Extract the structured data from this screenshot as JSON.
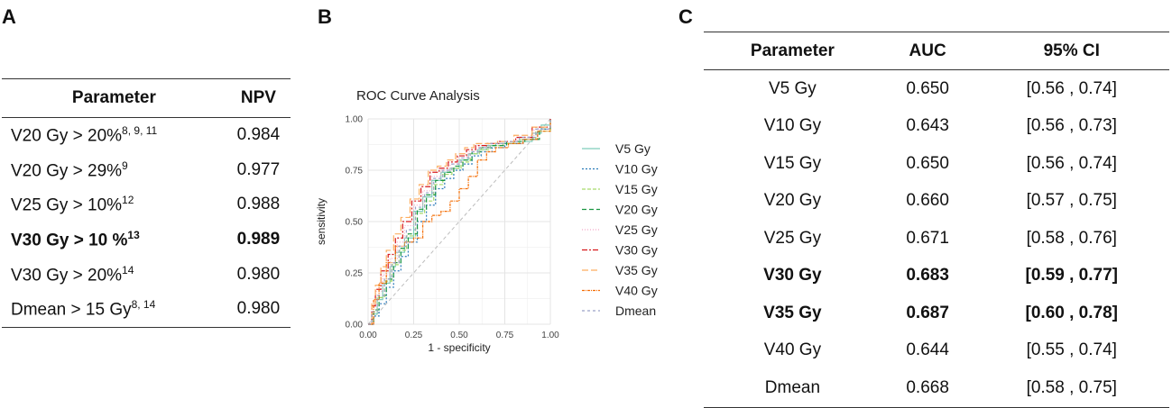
{
  "panels": {
    "a": "A",
    "b": "B",
    "c": "C"
  },
  "table_a": {
    "headers": [
      "Parameter",
      "NPV"
    ],
    "rows": [
      {
        "param": "V20 Gy > 20%",
        "sup": "8, 9, 11",
        "npv": "0.984",
        "bold": false
      },
      {
        "param": "V20 Gy > 29%",
        "sup": "9",
        "npv": "0.977",
        "bold": false
      },
      {
        "param": "V25 Gy > 10%",
        "sup": "12",
        "npv": "0.988",
        "bold": false
      },
      {
        "param": "V30 Gy > 10 %",
        "sup": "13",
        "npv": "0.989",
        "bold": true
      },
      {
        "param": "V30 Gy > 20%",
        "sup": "14",
        "npv": "0.980",
        "bold": false
      },
      {
        "param": "Dmean > 15 Gy",
        "sup": "8, 14",
        "npv": "0.980",
        "bold": false
      }
    ]
  },
  "chart_data": {
    "type": "line",
    "title": "ROC Curve Analysis",
    "xlabel": "1 - specificity",
    "ylabel": "sensitivity",
    "xlim": [
      0,
      1
    ],
    "ylim": [
      0,
      1
    ],
    "x_ticks": [
      "0.00",
      "0.25",
      "0.50",
      "0.75",
      "1.00"
    ],
    "y_ticks": [
      "0.00",
      "0.25",
      "0.50",
      "0.75",
      "1.00"
    ],
    "reference_line": [
      [
        0,
        0
      ],
      [
        1,
        1
      ]
    ],
    "series": [
      {
        "name": "V5 Gy",
        "color": "#7fcdbb",
        "dash": "0",
        "x": [
          0,
          0.02,
          0.05,
          0.08,
          0.12,
          0.15,
          0.2,
          0.25,
          0.3,
          0.35,
          0.4,
          0.45,
          0.5,
          0.55,
          0.6,
          0.65,
          0.7,
          0.8,
          0.9,
          0.95,
          1
        ],
        "y": [
          0,
          0.05,
          0.12,
          0.2,
          0.28,
          0.35,
          0.42,
          0.55,
          0.62,
          0.7,
          0.74,
          0.76,
          0.8,
          0.83,
          0.85,
          0.87,
          0.88,
          0.89,
          0.93,
          0.97,
          1
        ]
      },
      {
        "name": "V10 Gy",
        "color": "#2b7bb9",
        "dash": "2 2",
        "x": [
          0,
          0.03,
          0.06,
          0.1,
          0.14,
          0.18,
          0.22,
          0.27,
          0.32,
          0.37,
          0.42,
          0.47,
          0.52,
          0.57,
          0.62,
          0.68,
          0.75,
          0.85,
          0.93,
          1
        ],
        "y": [
          0,
          0.04,
          0.1,
          0.18,
          0.26,
          0.33,
          0.4,
          0.5,
          0.58,
          0.66,
          0.71,
          0.75,
          0.78,
          0.82,
          0.84,
          0.86,
          0.88,
          0.9,
          0.95,
          1
        ]
      },
      {
        "name": "V15 Gy",
        "color": "#a6d96a",
        "dash": "4 2",
        "x": [
          0,
          0.02,
          0.05,
          0.09,
          0.13,
          0.17,
          0.21,
          0.26,
          0.31,
          0.36,
          0.41,
          0.46,
          0.51,
          0.56,
          0.61,
          0.67,
          0.74,
          0.83,
          0.92,
          1
        ],
        "y": [
          0,
          0.06,
          0.13,
          0.21,
          0.29,
          0.36,
          0.43,
          0.54,
          0.6,
          0.68,
          0.73,
          0.76,
          0.79,
          0.83,
          0.85,
          0.87,
          0.88,
          0.9,
          0.94,
          1
        ]
      },
      {
        "name": "V20 Gy",
        "color": "#1a9641",
        "dash": "5 3",
        "x": [
          0,
          0.03,
          0.06,
          0.1,
          0.14,
          0.18,
          0.22,
          0.27,
          0.32,
          0.37,
          0.42,
          0.47,
          0.52,
          0.57,
          0.62,
          0.68,
          0.76,
          0.86,
          0.94,
          1
        ],
        "y": [
          0,
          0.07,
          0.14,
          0.22,
          0.3,
          0.37,
          0.44,
          0.56,
          0.63,
          0.7,
          0.74,
          0.77,
          0.8,
          0.84,
          0.86,
          0.87,
          0.89,
          0.9,
          0.95,
          1
        ]
      },
      {
        "name": "V25 Gy",
        "color": "#f4a6c8",
        "dash": "1 2",
        "x": [
          0,
          0.02,
          0.04,
          0.08,
          0.12,
          0.16,
          0.2,
          0.25,
          0.3,
          0.35,
          0.4,
          0.45,
          0.5,
          0.55,
          0.6,
          0.66,
          0.73,
          0.82,
          0.91,
          1
        ],
        "y": [
          0,
          0.08,
          0.16,
          0.24,
          0.32,
          0.4,
          0.48,
          0.58,
          0.65,
          0.72,
          0.75,
          0.78,
          0.81,
          0.84,
          0.86,
          0.88,
          0.89,
          0.91,
          0.95,
          1
        ]
      },
      {
        "name": "V30 Gy",
        "color": "#d7191c",
        "dash": "6 2 2 2",
        "x": [
          0,
          0.02,
          0.04,
          0.07,
          0.11,
          0.15,
          0.19,
          0.24,
          0.29,
          0.34,
          0.39,
          0.44,
          0.49,
          0.54,
          0.59,
          0.65,
          0.72,
          0.81,
          0.9,
          1
        ],
        "y": [
          0,
          0.09,
          0.17,
          0.26,
          0.34,
          0.42,
          0.5,
          0.6,
          0.67,
          0.74,
          0.76,
          0.79,
          0.82,
          0.85,
          0.87,
          0.88,
          0.89,
          0.91,
          0.96,
          1
        ]
      },
      {
        "name": "V35 Gy",
        "color": "#fdae61",
        "dash": "7 3",
        "x": [
          0,
          0.02,
          0.04,
          0.07,
          0.1,
          0.14,
          0.18,
          0.23,
          0.28,
          0.33,
          0.38,
          0.43,
          0.48,
          0.53,
          0.58,
          0.64,
          0.71,
          0.8,
          0.9,
          1
        ],
        "y": [
          0,
          0.1,
          0.19,
          0.28,
          0.36,
          0.44,
          0.52,
          0.61,
          0.68,
          0.75,
          0.77,
          0.8,
          0.83,
          0.86,
          0.88,
          0.88,
          0.89,
          0.92,
          0.96,
          1
        ]
      },
      {
        "name": "V40 Gy",
        "color": "#f46d04",
        "dash": "3 1 1 1",
        "x": [
          0,
          0.03,
          0.06,
          0.1,
          0.15,
          0.2,
          0.25,
          0.3,
          0.35,
          0.4,
          0.45,
          0.5,
          0.55,
          0.6,
          0.65,
          0.7,
          0.77,
          0.85,
          0.93,
          1
        ],
        "y": [
          0,
          0.12,
          0.2,
          0.3,
          0.38,
          0.4,
          0.42,
          0.5,
          0.53,
          0.55,
          0.6,
          0.66,
          0.72,
          0.8,
          0.84,
          0.86,
          0.88,
          0.9,
          0.94,
          1
        ]
      },
      {
        "name": "Dmean",
        "color": "#9aa0c8",
        "dash": "3 3",
        "x": [
          0,
          0.02,
          0.05,
          0.09,
          0.13,
          0.17,
          0.21,
          0.26,
          0.31,
          0.36,
          0.41,
          0.46,
          0.51,
          0.56,
          0.61,
          0.67,
          0.74,
          0.83,
          0.92,
          1
        ],
        "y": [
          0,
          0.06,
          0.14,
          0.22,
          0.3,
          0.38,
          0.46,
          0.57,
          0.64,
          0.71,
          0.75,
          0.78,
          0.81,
          0.84,
          0.86,
          0.88,
          0.89,
          0.91,
          0.95,
          1
        ]
      }
    ]
  },
  "table_c": {
    "headers": [
      "Parameter",
      "AUC",
      "95% CI"
    ],
    "rows": [
      {
        "param": "V5 Gy",
        "auc": "0.650",
        "ci": "[0.56 , 0.74]",
        "bold": false
      },
      {
        "param": "V10 Gy",
        "auc": "0.643",
        "ci": "[0.56 , 0.73]",
        "bold": false
      },
      {
        "param": "V15 Gy",
        "auc": "0.650",
        "ci": "[0.56 , 0.74]",
        "bold": false
      },
      {
        "param": "V20 Gy",
        "auc": "0.660",
        "ci": "[0.57 , 0.75]",
        "bold": false
      },
      {
        "param": "V25 Gy",
        "auc": "0.671",
        "ci": "[0.58 , 0.76]",
        "bold": false
      },
      {
        "param": "V30 Gy",
        "auc": "0.683",
        "ci": "[0.59 , 0.77]",
        "bold": true
      },
      {
        "param": "V35 Gy",
        "auc": "0.687",
        "ci": "[0.60 , 0.78]",
        "bold": true
      },
      {
        "param": "V40 Gy",
        "auc": "0.644",
        "ci": "[0.55 , 0.74]",
        "bold": false
      },
      {
        "param": "Dmean",
        "auc": "0.668",
        "ci": "[0.58 , 0.75]",
        "bold": false
      }
    ]
  }
}
